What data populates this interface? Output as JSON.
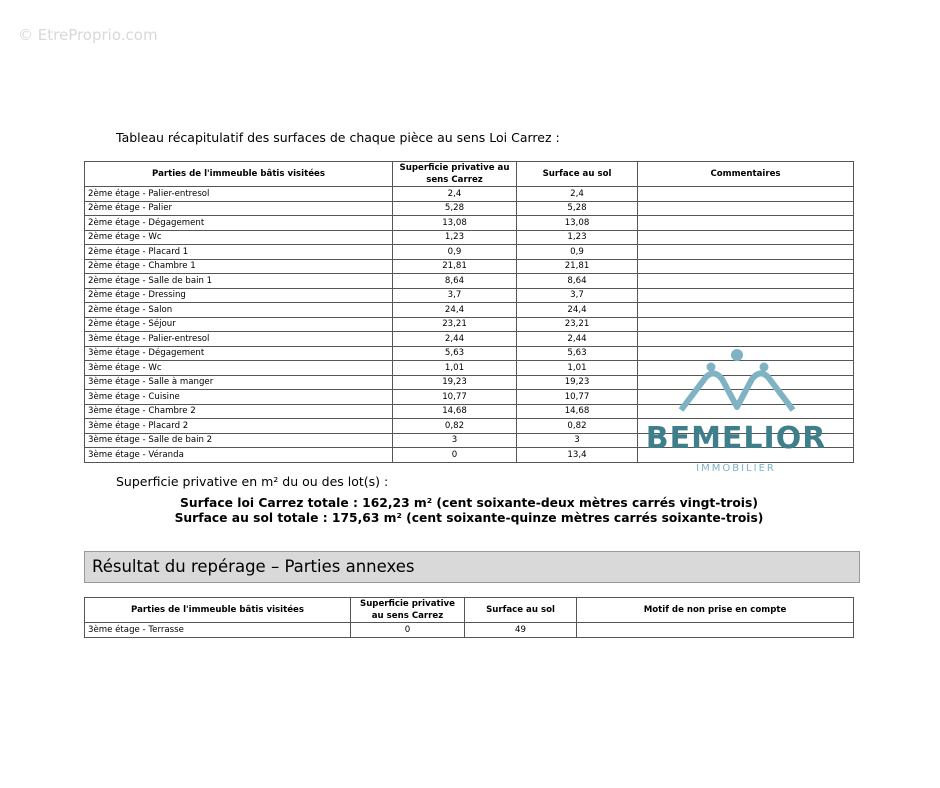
{
  "watermark": "© EtreProprio.com",
  "intro": "Tableau récapitulatif des surfaces de chaque pièce au sens Loi Carrez :",
  "table1": {
    "headers": [
      "Parties de l'immeuble bâtis visitées",
      "Superficie privative au sens Carrez",
      "Surface au sol",
      "Commentaires"
    ],
    "rows": [
      [
        "2ème étage - Palier-entresol",
        "2,4",
        "2,4",
        ""
      ],
      [
        "2ème étage - Palier",
        "5,28",
        "5,28",
        ""
      ],
      [
        "2ème étage - Dégagement",
        "13,08",
        "13,08",
        ""
      ],
      [
        "2ème étage - Wc",
        "1,23",
        "1,23",
        ""
      ],
      [
        "2ème étage - Placard 1",
        "0,9",
        "0,9",
        ""
      ],
      [
        "2ème étage - Chambre 1",
        "21,81",
        "21,81",
        ""
      ],
      [
        "2ème étage - Salle de bain 1",
        "8,64",
        "8,64",
        ""
      ],
      [
        "2ème étage - Dressing",
        "3,7",
        "3,7",
        ""
      ],
      [
        "2ème étage - Salon",
        "24,4",
        "24,4",
        ""
      ],
      [
        "2ème étage - Séjour",
        "23,21",
        "23,21",
        ""
      ],
      [
        "3ème étage - Palier-entresol",
        "2,44",
        "2,44",
        ""
      ],
      [
        "3ème étage - Dégagement",
        "5,63",
        "5,63",
        ""
      ],
      [
        "3ème étage - Wc",
        "1,01",
        "1,01",
        ""
      ],
      [
        "3ème étage - Salle à manger",
        "19,23",
        "19,23",
        ""
      ],
      [
        "3ème étage - Cuisine",
        "10,77",
        "10,77",
        ""
      ],
      [
        "3ème étage - Chambre 2",
        "14,68",
        "14,68",
        ""
      ],
      [
        "3ème étage - Placard 2",
        "0,82",
        "0,82",
        ""
      ],
      [
        "3ème étage - Salle de bain 2",
        "3",
        "3",
        ""
      ],
      [
        "3ème étage - Véranda",
        "0",
        "13,4",
        ""
      ]
    ]
  },
  "superficie_label": "Superficie privative en m² du ou des lot(s) :",
  "total_carrez": "Surface loi Carrez totale : 162,23 m² (cent soixante-deux mètres carrés vingt-trois)",
  "total_sol": "Surface au sol totale : 175,63 m² (cent soixante-quinze mètres carrés soixante-trois)",
  "section_title": "Résultat du repérage – Parties annexes",
  "table2": {
    "headers": [
      "Parties de l'immeuble bâtis visitées",
      "Superficie privative au sens Carrez",
      "Surface au sol",
      "Motif de non prise en compte"
    ],
    "rows": [
      [
        "3ème étage - Terrasse",
        "0",
        "49",
        ""
      ]
    ]
  },
  "logo": {
    "name": "BEMELIOR",
    "sub": "IMMOBILIER",
    "color": "#3f7f8c",
    "light": "#7fb3c4"
  }
}
